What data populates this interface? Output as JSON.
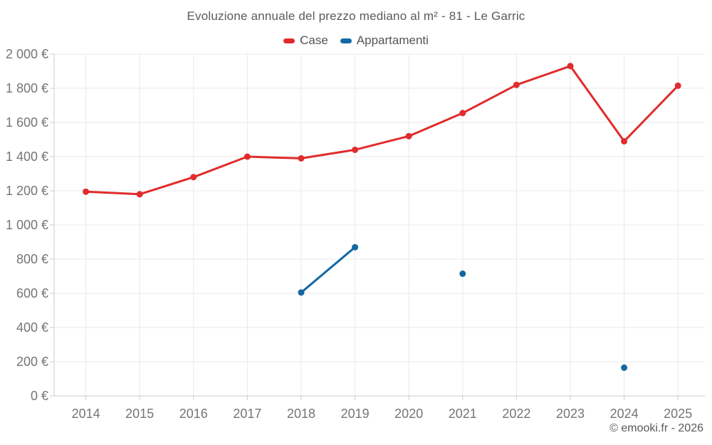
{
  "chart_data": {
    "type": "line",
    "title": "Evoluzione annuale del prezzo mediano al m² - 81 - Le Garric",
    "categories": [
      "2014",
      "2015",
      "2016",
      "2017",
      "2018",
      "2019",
      "2020",
      "2021",
      "2022",
      "2023",
      "2024",
      "2025"
    ],
    "series": [
      {
        "name": "Case",
        "color": "#e02c2c",
        "values": [
          1195,
          1180,
          1280,
          1400,
          1390,
          1440,
          1520,
          1655,
          1820,
          1930,
          1490,
          1815
        ]
      },
      {
        "name": "Appartamenti",
        "color": "#1368a4",
        "values": [
          null,
          null,
          null,
          null,
          605,
          870,
          null,
          715,
          null,
          null,
          165,
          null
        ]
      }
    ],
    "ylim": [
      0,
      2000
    ],
    "y_tick_step": 200,
    "y_tick_labels": [
      "0 €",
      "200 €",
      "400 €",
      "600 €",
      "800 €",
      "1 000 €",
      "1 200 €",
      "1 400 €",
      "1 600 €",
      "1 800 €",
      "2 000 €"
    ],
    "grid": true,
    "legend_position": "top",
    "xlabel": "",
    "ylabel": ""
  },
  "footer": {
    "credit": "© emooki.fr - 2026"
  },
  "colors": {
    "grid": "#e9e9e9",
    "axis": "#cccccc",
    "axis_label": "#757575",
    "title": "#5a5a5a",
    "legend_text": "#555555",
    "footer_text": "#595959",
    "background": "#ffffff"
  }
}
